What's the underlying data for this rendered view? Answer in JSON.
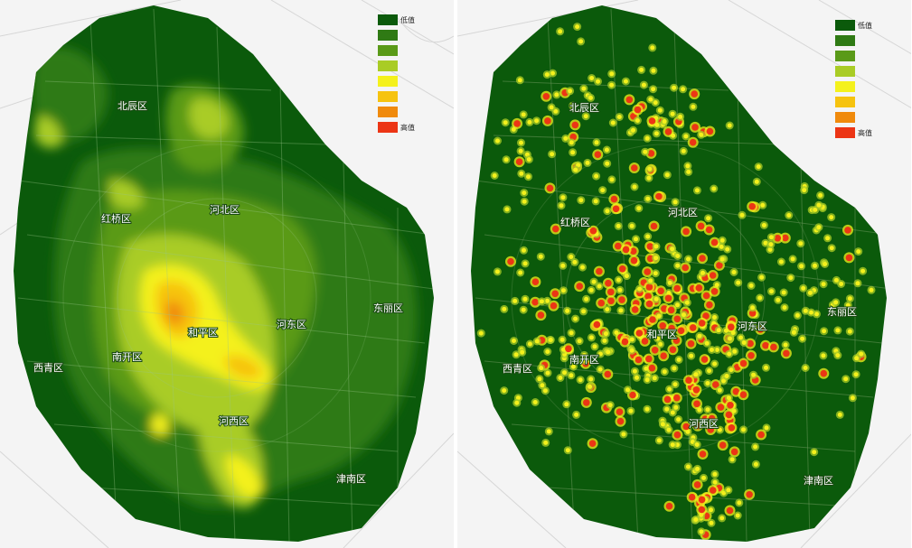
{
  "legend": {
    "low_label": "低值",
    "high_label": "高值",
    "colors": [
      "#0b5a0b",
      "#2f7a14",
      "#5a9a18",
      "#a9cc25",
      "#f4f11c",
      "#f6c30f",
      "#f08a0c",
      "#ec3515"
    ]
  },
  "left_map": {
    "districts": {
      "beichen": "北辰区",
      "hongqiao": "红桥区",
      "hebei": "河北区",
      "dongli": "东丽区",
      "hedong": "河东区",
      "heping": "和平区",
      "nankai": "南开区",
      "xiqing": "西青区",
      "hexi": "河西区",
      "jinnan": "津南区"
    }
  },
  "right_map": {
    "districts": {
      "beichen": "北辰区",
      "hongqiao": "红桥区",
      "hebei": "河北区",
      "dongli": "东丽区",
      "hedong": "河东区",
      "heping": "和平区",
      "nankai": "南开区",
      "xiqing": "西青区",
      "hexi": "河西区",
      "jinnan": "津南区"
    }
  },
  "colors": {
    "base_dark_green": "#0b5a0b",
    "road_lines": "#6f9a60",
    "background": "#f4f4f4"
  }
}
